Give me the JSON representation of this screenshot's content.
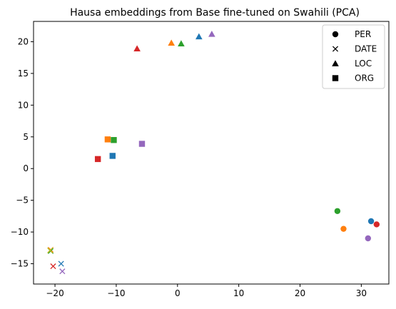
{
  "chart_data": {
    "type": "scatter",
    "title": "Hausa embeddings from Base fine-tuned on Swahili (PCA)",
    "xlabel": "",
    "ylabel": "",
    "xlim": [
      -23.5,
      34.5
    ],
    "ylim": [
      -18.2,
      23.2
    ],
    "xticks": [
      -20,
      -10,
      0,
      10,
      20,
      30
    ],
    "yticks": [
      -15,
      -10,
      -5,
      0,
      5,
      10,
      15,
      20
    ],
    "grid": false,
    "legend_placement": "top-right",
    "legend": [
      {
        "label": "PER",
        "marker": "circle"
      },
      {
        "label": "DATE",
        "marker": "x"
      },
      {
        "label": "LOC",
        "marker": "triangle"
      },
      {
        "label": "ORG",
        "marker": "square"
      }
    ],
    "colors": {
      "blue": "#1f77b4",
      "orange": "#ff7f0e",
      "green": "#2ca02c",
      "red": "#d62728",
      "purple": "#9467bd",
      "olive": "#bcbd22"
    },
    "points": [
      {
        "x": 31.6,
        "y": -8.3,
        "marker": "circle",
        "color": "blue"
      },
      {
        "x": 27.1,
        "y": -9.5,
        "marker": "circle",
        "color": "orange"
      },
      {
        "x": 26.1,
        "y": -6.7,
        "marker": "circle",
        "color": "green"
      },
      {
        "x": 32.5,
        "y": -8.8,
        "marker": "circle",
        "color": "red"
      },
      {
        "x": 31.1,
        "y": -11.0,
        "marker": "circle",
        "color": "purple"
      },
      {
        "x": -19.0,
        "y": -15.0,
        "marker": "x",
        "color": "blue"
      },
      {
        "x": -20.7,
        "y": -12.8,
        "marker": "x",
        "color": "orange"
      },
      {
        "x": -20.7,
        "y": -13.0,
        "marker": "x",
        "color": "green"
      },
      {
        "x": -20.3,
        "y": -15.4,
        "marker": "x",
        "color": "red"
      },
      {
        "x": -18.8,
        "y": -16.2,
        "marker": "x",
        "color": "purple"
      },
      {
        "x": -20.8,
        "y": -12.9,
        "marker": "x",
        "color": "olive"
      },
      {
        "x": 3.5,
        "y": 20.8,
        "marker": "triangle",
        "color": "blue"
      },
      {
        "x": -1.0,
        "y": 19.8,
        "marker": "triangle",
        "color": "orange"
      },
      {
        "x": 0.6,
        "y": 19.7,
        "marker": "triangle",
        "color": "green"
      },
      {
        "x": -6.6,
        "y": 18.9,
        "marker": "triangle",
        "color": "red"
      },
      {
        "x": 5.6,
        "y": 21.2,
        "marker": "triangle",
        "color": "purple"
      },
      {
        "x": -10.6,
        "y": 2.0,
        "marker": "square",
        "color": "blue"
      },
      {
        "x": -11.4,
        "y": 4.6,
        "marker": "square",
        "color": "orange"
      },
      {
        "x": -10.4,
        "y": 4.5,
        "marker": "square",
        "color": "green"
      },
      {
        "x": -13.0,
        "y": 1.5,
        "marker": "square",
        "color": "red"
      },
      {
        "x": -5.8,
        "y": 3.9,
        "marker": "square",
        "color": "purple"
      }
    ]
  }
}
